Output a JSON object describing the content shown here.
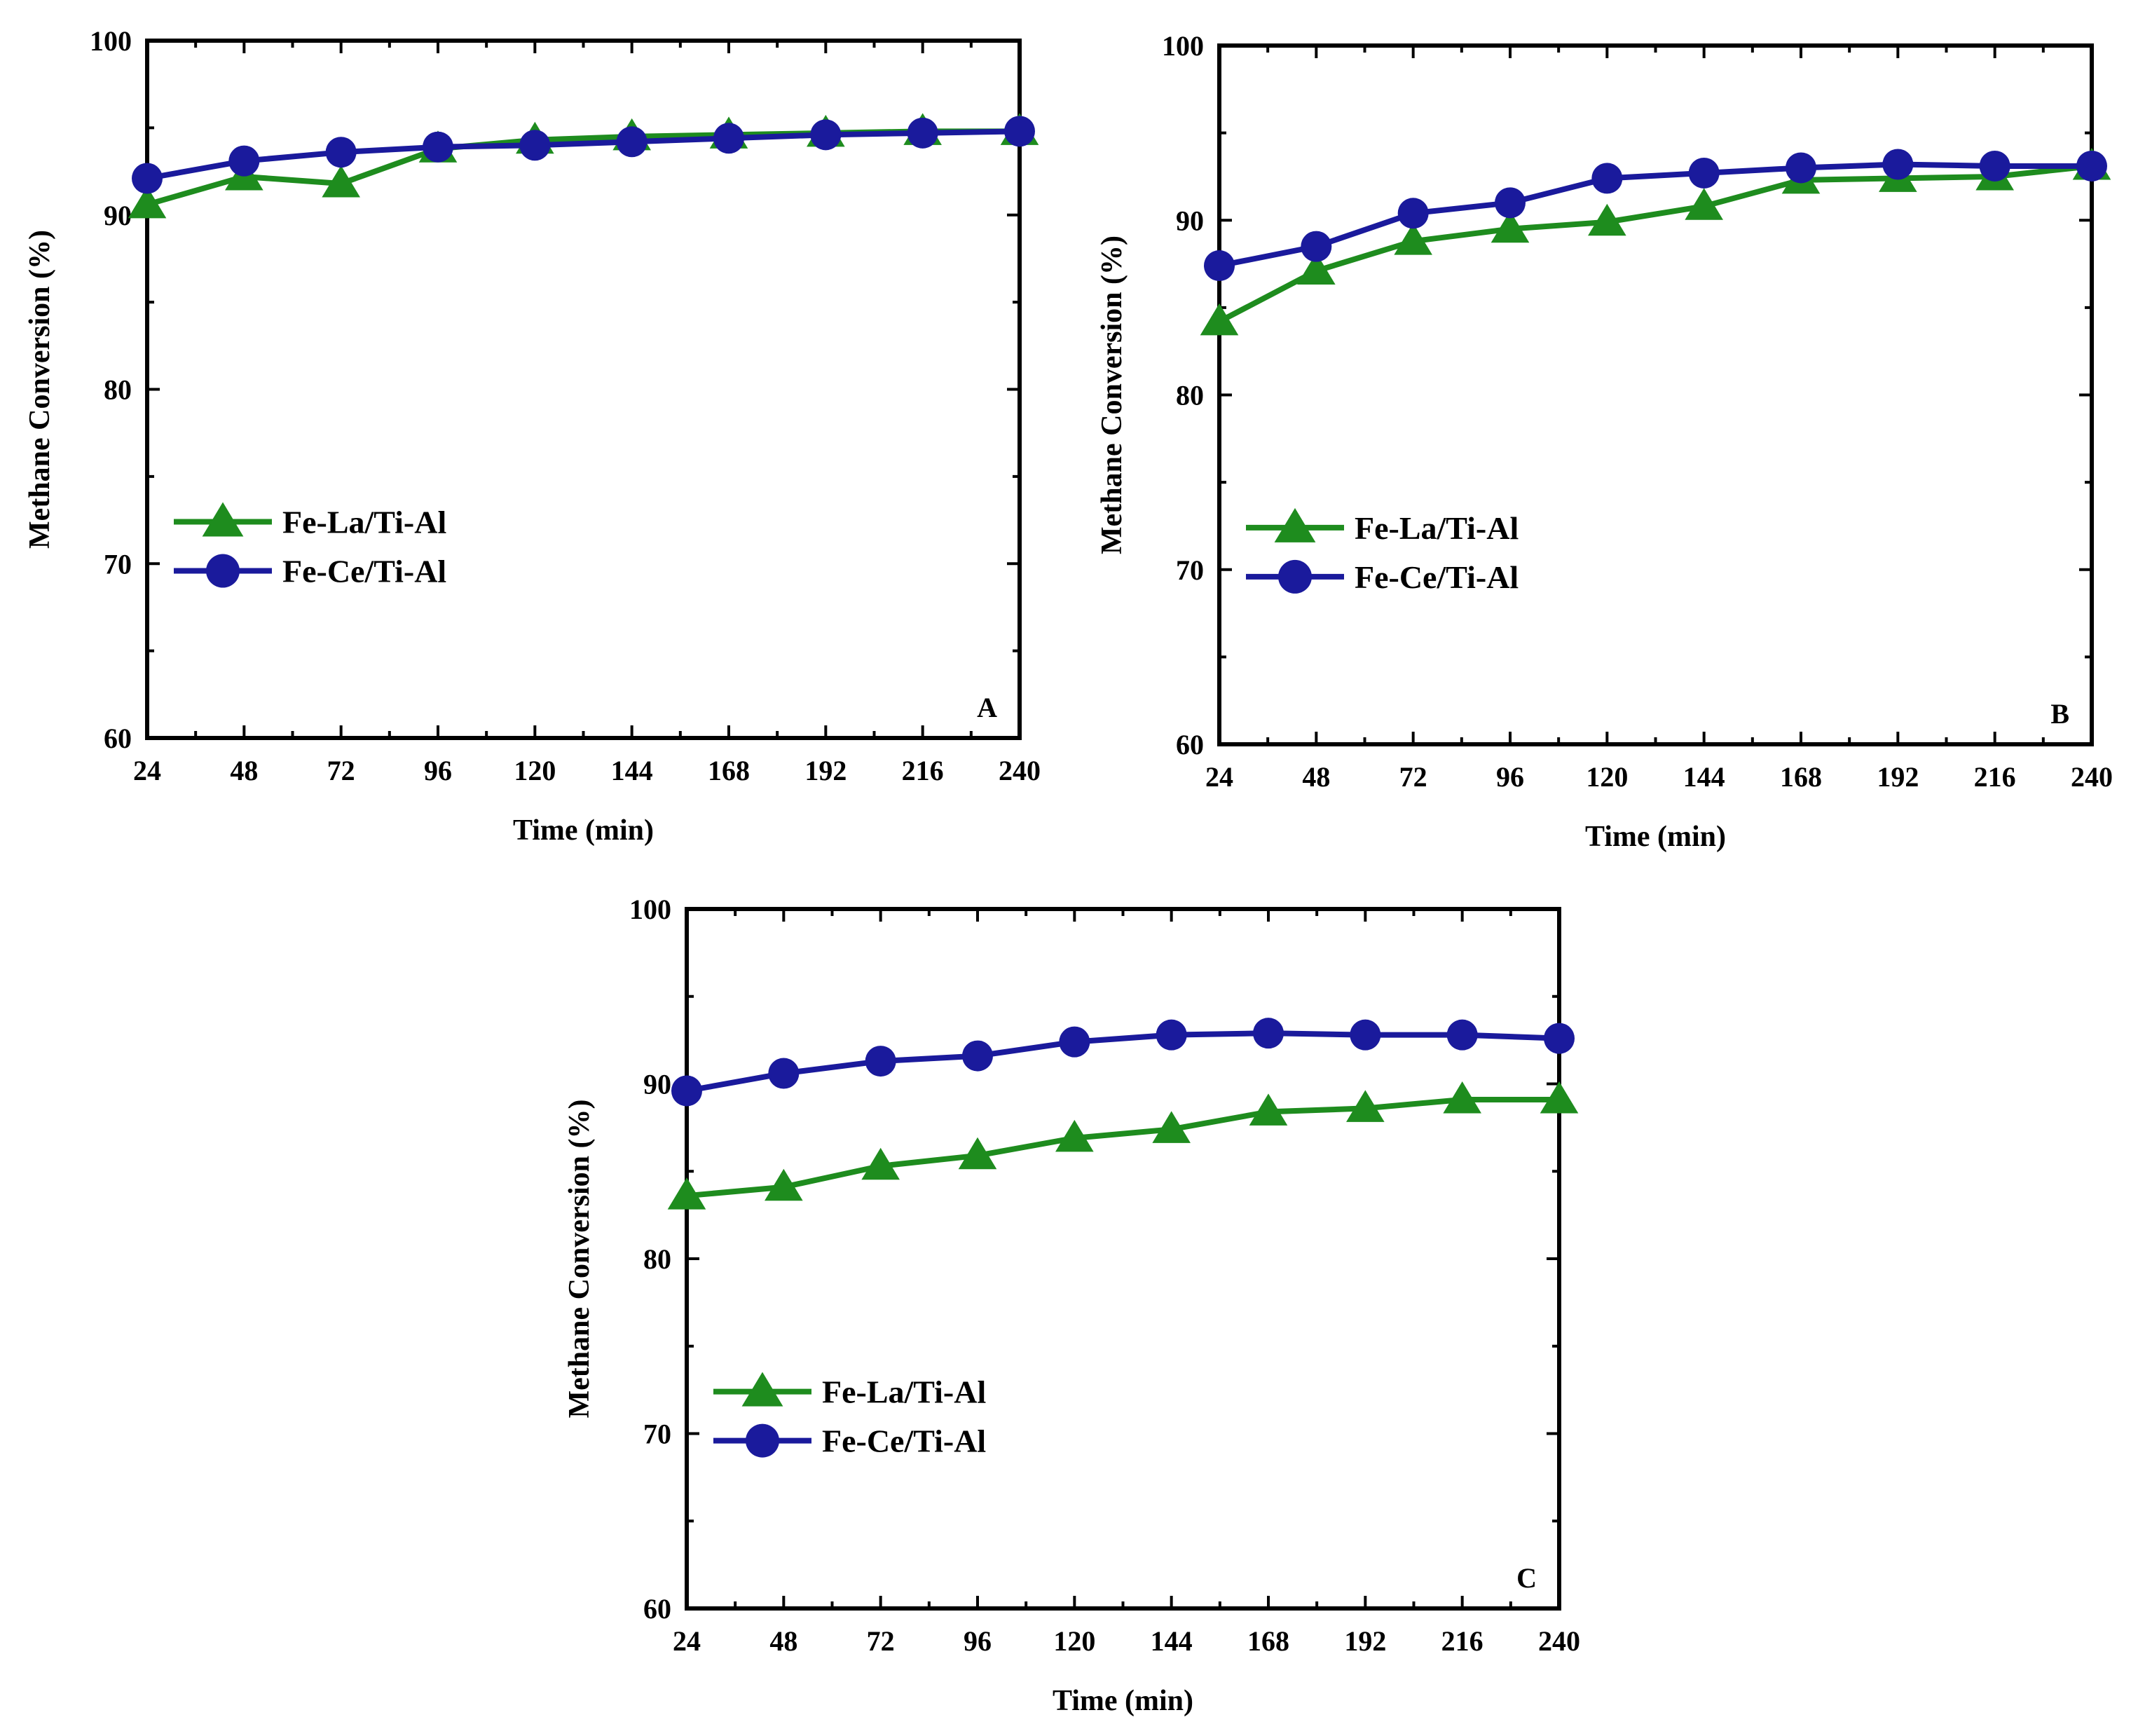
{
  "colors": {
    "fe_la": "#1e8c1e",
    "fe_ce": "#1a1a9c",
    "axis": "#000000"
  },
  "legend": {
    "fe_la": "Fe-La/Ti-Al",
    "fe_ce": "Fe-Ce/Ti-Al"
  },
  "chart_data": [
    {
      "type": "line",
      "panel_label": "A",
      "title": "",
      "xlabel": "Time (min)",
      "ylabel": "Methane Conversion (%)",
      "x": [
        24,
        48,
        72,
        96,
        120,
        144,
        168,
        192,
        216,
        240
      ],
      "x_ticks": [
        "24",
        "48",
        "72",
        "96",
        "120",
        "144",
        "168",
        "192",
        "216",
        "240"
      ],
      "y_ticks": [
        "60",
        "70",
        "80",
        "90",
        "100"
      ],
      "xlim": [
        24,
        240
      ],
      "ylim": [
        60,
        100
      ],
      "legend_position": "middle-left",
      "series": [
        {
          "name": "Fe-La/Ti-Al",
          "marker": "triangle",
          "values": [
            90.6,
            92.2,
            91.8,
            93.8,
            94.3,
            94.5,
            94.6,
            94.7,
            94.8,
            94.8
          ]
        },
        {
          "name": "Fe-Ce/Ti-Al",
          "marker": "circle",
          "values": [
            92.1,
            93.1,
            93.6,
            93.9,
            94.0,
            94.2,
            94.4,
            94.6,
            94.7,
            94.8
          ]
        }
      ]
    },
    {
      "type": "line",
      "panel_label": "B",
      "title": "",
      "xlabel": "Time (min)",
      "ylabel": "Methane Conversion (%)",
      "x": [
        24,
        48,
        72,
        96,
        120,
        144,
        168,
        192,
        216,
        240
      ],
      "x_ticks": [
        "24",
        "48",
        "72",
        "96",
        "120",
        "144",
        "168",
        "192",
        "216",
        "240"
      ],
      "y_ticks": [
        "60",
        "70",
        "80",
        "90",
        "100"
      ],
      "xlim": [
        24,
        240
      ],
      "ylim": [
        60,
        100
      ],
      "legend_position": "middle-left",
      "series": [
        {
          "name": "Fe-La/Ti-Al",
          "marker": "triangle",
          "values": [
            84.2,
            87.1,
            88.8,
            89.5,
            89.9,
            90.8,
            92.3,
            92.4,
            92.5,
            93.1
          ]
        },
        {
          "name": "Fe-Ce/Ti-Al",
          "marker": "circle",
          "values": [
            87.4,
            88.5,
            90.4,
            91.0,
            92.4,
            92.7,
            93.0,
            93.2,
            93.1,
            93.1
          ]
        }
      ]
    },
    {
      "type": "line",
      "panel_label": "C",
      "title": "",
      "xlabel": "Time (min)",
      "ylabel": "Methane Conversion (%)",
      "x": [
        24,
        48,
        72,
        96,
        120,
        144,
        168,
        192,
        216,
        240
      ],
      "x_ticks": [
        "24",
        "48",
        "72",
        "96",
        "120",
        "144",
        "168",
        "192",
        "216",
        "240"
      ],
      "y_ticks": [
        "60",
        "70",
        "80",
        "90",
        "100"
      ],
      "xlim": [
        24,
        240
      ],
      "ylim": [
        60,
        100
      ],
      "legend_position": "middle-left",
      "series": [
        {
          "name": "Fe-La/Ti-Al",
          "marker": "triangle",
          "values": [
            83.6,
            84.1,
            85.3,
            85.9,
            86.9,
            87.4,
            88.4,
            88.6,
            89.1,
            89.1
          ]
        },
        {
          "name": "Fe-Ce/Ti-Al",
          "marker": "circle",
          "values": [
            89.6,
            90.6,
            91.3,
            91.6,
            92.4,
            92.8,
            92.9,
            92.8,
            92.8,
            92.6
          ]
        }
      ]
    }
  ]
}
